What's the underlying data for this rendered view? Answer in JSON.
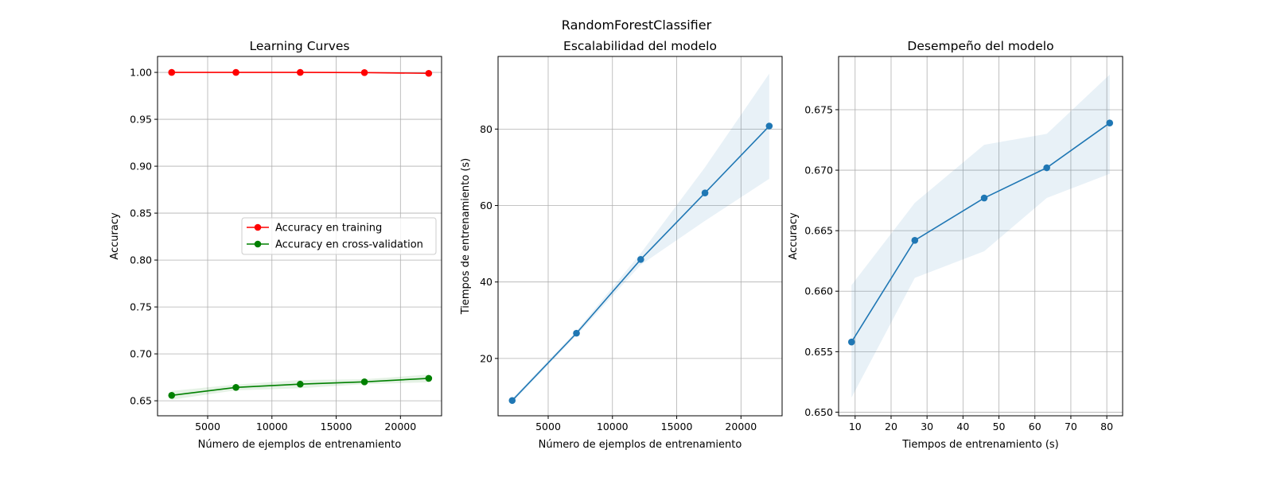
{
  "suptitle": "RandomForestClassifier",
  "chart_data": [
    {
      "type": "line",
      "title": "Learning Curves",
      "xlabel": "Número de ejemplos de entrenamiento",
      "ylabel": "Accuracy",
      "xlim": [
        1100,
        23200
      ],
      "ylim": [
        0.634,
        1.017
      ],
      "xticks": [
        5000,
        10000,
        15000,
        20000
      ],
      "yticks": [
        0.65,
        0.7,
        0.75,
        0.8,
        0.85,
        0.9,
        0.95,
        1.0
      ],
      "ytick_labels": [
        "0.65",
        "0.70",
        "0.75",
        "0.80",
        "0.85",
        "0.90",
        "0.95",
        "1.00"
      ],
      "grid": true,
      "legend_position": "center-right",
      "x": [
        2200,
        7200,
        12200,
        17200,
        22200
      ],
      "series": [
        {
          "name": "Accuracy en training",
          "color": "#ff0000",
          "values": [
            1.0,
            1.0,
            1.0,
            0.9998,
            0.999
          ],
          "band_low": [
            1.0,
            1.0,
            1.0,
            0.9995,
            0.9985
          ],
          "band_high": [
            1.0,
            1.0,
            1.0,
            1.0,
            0.9995
          ]
        },
        {
          "name": "Accuracy en cross-validation",
          "color": "#008000",
          "values": [
            0.6558,
            0.6642,
            0.6677,
            0.6702,
            0.6739
          ],
          "band_low": [
            0.6512,
            0.6611,
            0.6633,
            0.6677,
            0.6697
          ],
          "band_high": [
            0.6605,
            0.6673,
            0.6721,
            0.673,
            0.6779
          ]
        }
      ]
    },
    {
      "type": "line",
      "title": "Escalabilidad del modelo",
      "xlabel": "Número de ejemplos de entrenamiento",
      "ylabel": "Tiempos de entrenamiento (s)",
      "xlim": [
        1100,
        23200
      ],
      "ylim": [
        5,
        99
      ],
      "xticks": [
        5000,
        10000,
        15000,
        20000
      ],
      "yticks": [
        20,
        40,
        60,
        80
      ],
      "ytick_labels": [
        "20",
        "40",
        "60",
        "80"
      ],
      "grid": true,
      "x": [
        2200,
        7200,
        12200,
        17200,
        22200
      ],
      "series": [
        {
          "name": "",
          "color": "#1f77b4",
          "values": [
            9.0,
            26.6,
            45.9,
            63.3,
            80.8
          ],
          "band_low": [
            8.5,
            26.0,
            44.5,
            56.0,
            67.0
          ],
          "band_high": [
            9.5,
            27.2,
            47.5,
            70.0,
            94.5
          ]
        }
      ]
    },
    {
      "type": "line",
      "title": "Desempeño del modelo",
      "xlabel": "Tiempos de entrenamiento (s)",
      "ylabel": "Accuracy",
      "xlim": [
        5.4,
        84.4
      ],
      "ylim": [
        0.6497,
        0.6794
      ],
      "xticks": [
        10,
        20,
        30,
        40,
        50,
        60,
        70,
        80
      ],
      "yticks": [
        0.65,
        0.655,
        0.66,
        0.665,
        0.67,
        0.675
      ],
      "ytick_labels": [
        "0.650",
        "0.655",
        "0.660",
        "0.665",
        "0.670",
        "0.675"
      ],
      "grid": true,
      "x": [
        9.0,
        26.6,
        45.9,
        63.3,
        80.8
      ],
      "series": [
        {
          "name": "",
          "color": "#1f77b4",
          "values": [
            0.6558,
            0.6642,
            0.6677,
            0.6702,
            0.6739
          ],
          "band_low": [
            0.6512,
            0.6611,
            0.6633,
            0.6677,
            0.6697
          ],
          "band_high": [
            0.6605,
            0.6673,
            0.6721,
            0.673,
            0.6779
          ]
        }
      ]
    }
  ]
}
